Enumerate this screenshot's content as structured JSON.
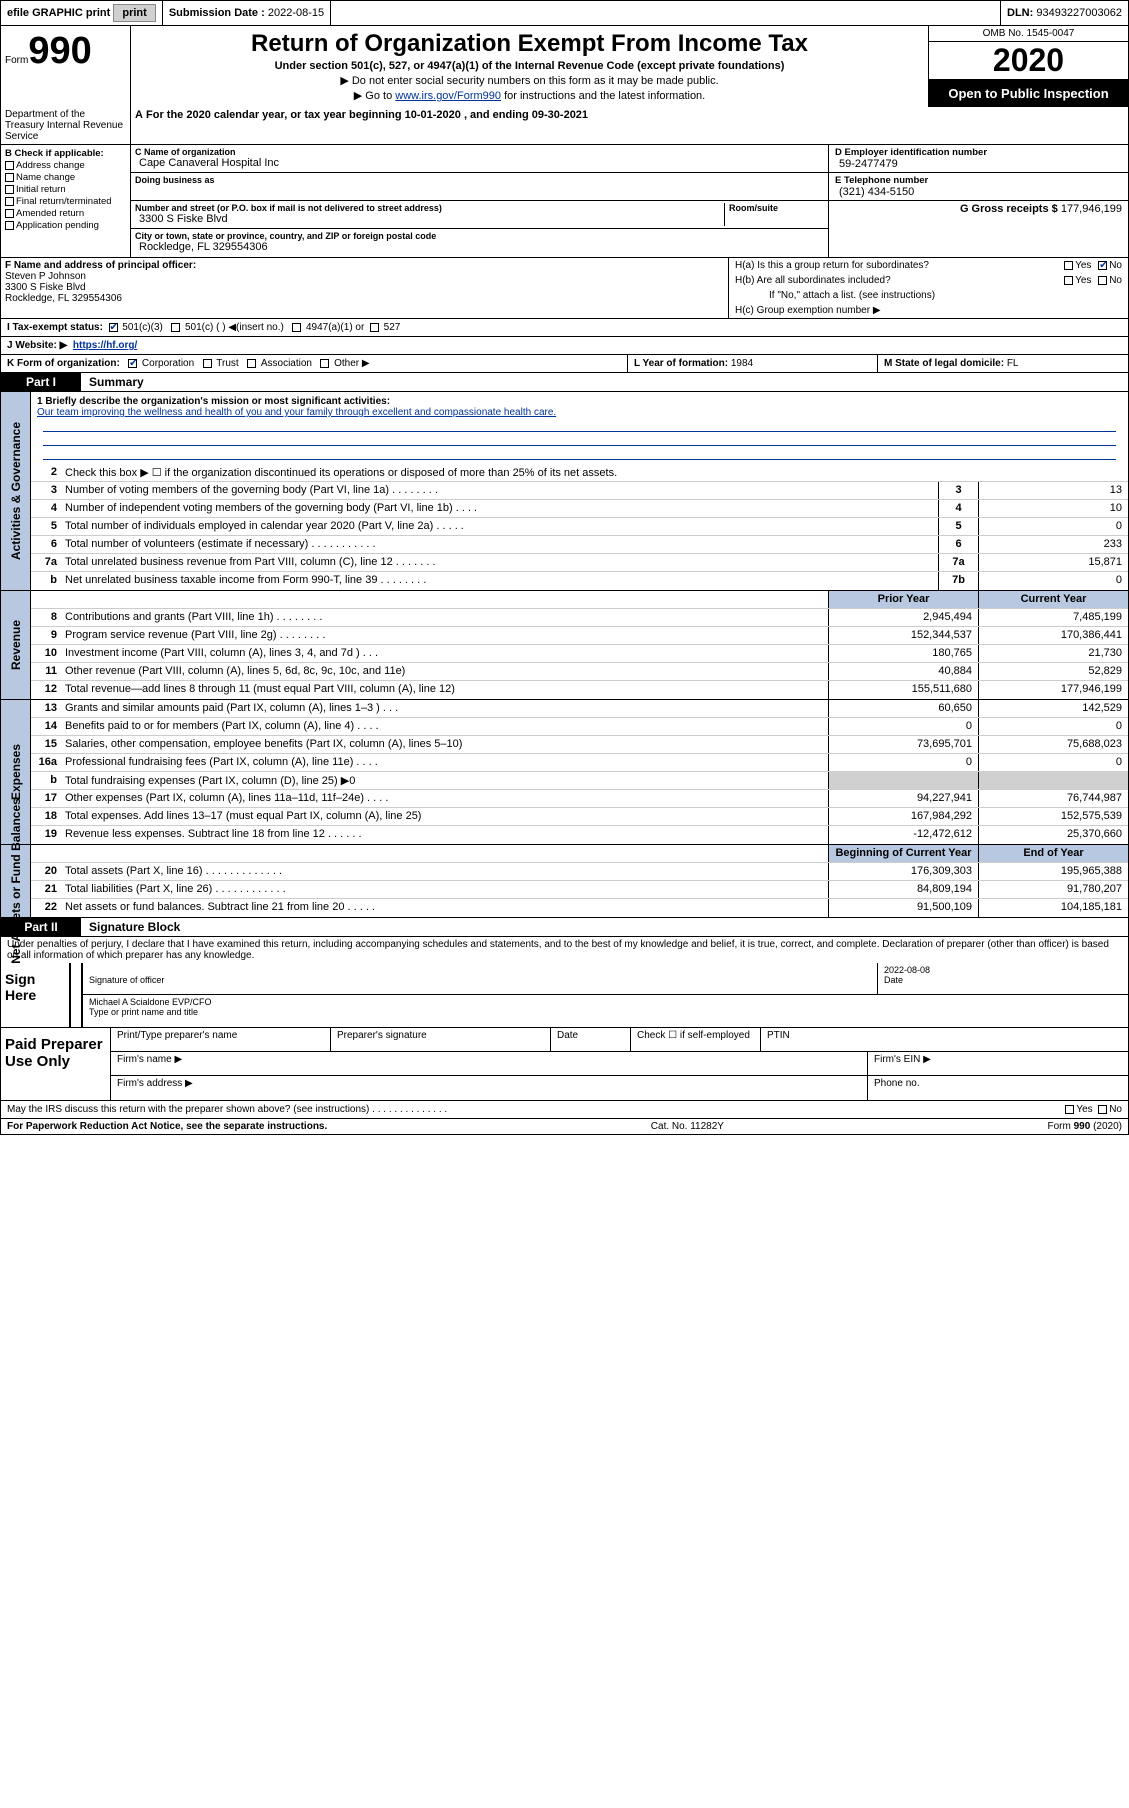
{
  "topbar": {
    "efile": "efile GRAPHIC print",
    "submission_label": "Submission Date :",
    "submission_date": "2022-08-15",
    "dln_label": "DLN:",
    "dln": "93493227003062"
  },
  "header": {
    "form_small": "Form",
    "form_big": "990",
    "title": "Return of Organization Exempt From Income Tax",
    "subtitle": "Under section 501(c), 527, or 4947(a)(1) of the Internal Revenue Code (except private foundations)",
    "note1": "▶ Do not enter social security numbers on this form as it may be made public.",
    "note2_pre": "▶ Go to ",
    "note2_link": "www.irs.gov/Form990",
    "note2_post": " for instructions and the latest information.",
    "omb": "OMB No. 1545-0047",
    "year": "2020",
    "open": "Open to Public Inspection",
    "dept": "Department of the Treasury Internal Revenue Service"
  },
  "lineA": "For the 2020 calendar year, or tax year beginning 10-01-2020    , and ending 09-30-2021",
  "boxB": {
    "label": "B Check if applicable:",
    "items": [
      "Address change",
      "Name change",
      "Initial return",
      "Final return/terminated",
      "Amended return",
      "Application pending"
    ]
  },
  "boxC": {
    "name_lbl": "C Name of organization",
    "name": "Cape Canaveral Hospital Inc",
    "dba_lbl": "Doing business as",
    "dba": "",
    "street_lbl": "Number and street (or P.O. box if mail is not delivered to street address)",
    "room_lbl": "Room/suite",
    "street": "3300 S Fiske Blvd",
    "city_lbl": "City or town, state or province, country, and ZIP or foreign postal code",
    "city": "Rockledge, FL  329554306"
  },
  "boxD": {
    "lbl": "D Employer identification number",
    "val": "59-2477479"
  },
  "boxE": {
    "lbl": "E Telephone number",
    "val": "(321) 434-5150"
  },
  "boxG": {
    "lbl": "G Gross receipts $",
    "val": "177,946,199"
  },
  "boxF": {
    "lbl": "F  Name and address of principal officer:",
    "name": "Steven P Johnson",
    "addr1": "3300 S Fiske Blvd",
    "addr2": "Rockledge, FL  329554306"
  },
  "boxH": {
    "a": "H(a)  Is this a group return for subordinates?",
    "b": "H(b)  Are all subordinates included?",
    "b_note": "If \"No,\" attach a list. (see instructions)",
    "c": "H(c)  Group exemption number ▶"
  },
  "boxI": {
    "lbl": "I  Tax-exempt status:",
    "opts": [
      "501(c)(3)",
      "501(c) (  )  ◀(insert no.)",
      "4947(a)(1) or",
      "527"
    ]
  },
  "boxJ": {
    "lbl": "J  Website: ▶",
    "val": "https://hf.org/"
  },
  "boxK": {
    "lbl": "K Form of organization:",
    "opts": [
      "Corporation",
      "Trust",
      "Association",
      "Other ▶"
    ]
  },
  "boxL": {
    "lbl": "L Year of formation:",
    "val": "1984"
  },
  "boxM": {
    "lbl": "M State of legal domicile:",
    "val": "FL"
  },
  "part1": {
    "hdr": "Part I",
    "title": "Summary",
    "mission_lbl": "1  Briefly describe the organization's mission or most significant activities:",
    "mission": "Our team improving the wellness and health of you and your family through excellent and compassionate health care.",
    "line2": "Check this box ▶ ☐  if the organization discontinued its operations or disposed of more than 25% of its net assets."
  },
  "governance_label": "Activities & Governance",
  "gov_lines": [
    {
      "n": "3",
      "t": "Number of voting members of the governing body (Part VI, line 1a)   .    .    .    .    .    .    .    .",
      "box": "3",
      "v": "13"
    },
    {
      "n": "4",
      "t": "Number of independent voting members of the governing body (Part VI, line 1b)   .    .    .    .",
      "box": "4",
      "v": "10"
    },
    {
      "n": "5",
      "t": "Total number of individuals employed in calendar year 2020 (Part V, line 2a)   .    .    .    .    .",
      "box": "5",
      "v": "0"
    },
    {
      "n": "6",
      "t": "Total number of volunteers (estimate if necessary)   .    .    .    .    .    .    .    .    .    .    .",
      "box": "6",
      "v": "233"
    },
    {
      "n": "7a",
      "t": "Total unrelated business revenue from Part VIII, column (C), line 12   .    .    .    .    .    .    .",
      "box": "7a",
      "v": "15,871"
    },
    {
      "n": "b",
      "t": "Net unrelated business taxable income from Form 990-T, line 39   .    .    .    .    .    .    .    .",
      "box": "7b",
      "v": "0"
    }
  ],
  "revenue_label": "Revenue",
  "rev_hdr": {
    "prior": "Prior Year",
    "current": "Current Year"
  },
  "rev_lines": [
    {
      "n": "8",
      "t": "Contributions and grants (Part VIII, line 1h)   .    .    .    .    .    .    .    .",
      "p": "2,945,494",
      "c": "7,485,199"
    },
    {
      "n": "9",
      "t": "Program service revenue (Part VIII, line 2g)   .    .    .    .    .    .    .    .",
      "p": "152,344,537",
      "c": "170,386,441"
    },
    {
      "n": "10",
      "t": "Investment income (Part VIII, column (A), lines 3, 4, and 7d )   .    .    .",
      "p": "180,765",
      "c": "21,730"
    },
    {
      "n": "11",
      "t": "Other revenue (Part VIII, column (A), lines 5, 6d, 8c, 9c, 10c, and 11e)",
      "p": "40,884",
      "c": "52,829"
    },
    {
      "n": "12",
      "t": "Total revenue—add lines 8 through 11 (must equal Part VIII, column (A), line 12)",
      "p": "155,511,680",
      "c": "177,946,199"
    }
  ],
  "expenses_label": "Expenses",
  "exp_lines": [
    {
      "n": "13",
      "t": "Grants and similar amounts paid (Part IX, column (A), lines 1–3 )   .    .    .",
      "p": "60,650",
      "c": "142,529"
    },
    {
      "n": "14",
      "t": "Benefits paid to or for members (Part IX, column (A), line 4)   .    .    .    .",
      "p": "0",
      "c": "0"
    },
    {
      "n": "15",
      "t": "Salaries, other compensation, employee benefits (Part IX, column (A), lines 5–10)",
      "p": "73,695,701",
      "c": "75,688,023"
    },
    {
      "n": "16a",
      "t": "Professional fundraising fees (Part IX, column (A), line 11e)   .    .    .    .",
      "p": "0",
      "c": "0"
    },
    {
      "n": "b",
      "t": "Total fundraising expenses (Part IX, column (D), line 25) ▶0",
      "p": "",
      "c": "",
      "shade": true
    },
    {
      "n": "17",
      "t": "Other expenses (Part IX, column (A), lines 11a–11d, 11f–24e)   .    .    .    .",
      "p": "94,227,941",
      "c": "76,744,987"
    },
    {
      "n": "18",
      "t": "Total expenses. Add lines 13–17 (must equal Part IX, column (A), line 25)",
      "p": "167,984,292",
      "c": "152,575,539"
    },
    {
      "n": "19",
      "t": "Revenue less expenses. Subtract line 18 from line 12   .    .    .    .    .    .",
      "p": "-12,472,612",
      "c": "25,370,660"
    }
  ],
  "netassets_label": "Net Assets or Fund Balances",
  "na_hdr": {
    "begin": "Beginning of Current Year",
    "end": "End of Year"
  },
  "na_lines": [
    {
      "n": "20",
      "t": "Total assets (Part X, line 16)   .    .    .    .    .    .    .    .    .    .    .    .    .",
      "p": "176,309,303",
      "c": "195,965,388"
    },
    {
      "n": "21",
      "t": "Total liabilities (Part X, line 26)   .    .    .    .    .    .    .    .    .    .    .    .",
      "p": "84,809,194",
      "c": "91,780,207"
    },
    {
      "n": "22",
      "t": "Net assets or fund balances. Subtract line 21 from line 20   .    .    .    .    .",
      "p": "91,500,109",
      "c": "104,185,181"
    }
  ],
  "part2": {
    "hdr": "Part II",
    "title": "Signature Block",
    "penalty": "Under penalties of perjury, I declare that I have examined this return, including accompanying schedules and statements, and to the best of my knowledge and belief, it is true, correct, and complete. Declaration of preparer (other than officer) is based on all information of which preparer has any knowledge."
  },
  "sign": {
    "left": "Sign Here",
    "sig_lbl": "Signature of officer",
    "date_lbl": "Date",
    "date": "2022-08-08",
    "name": "Michael A Scialdone  EVP/CFO",
    "name_lbl": "Type or print name and title"
  },
  "paid": {
    "left": "Paid Preparer Use Only",
    "h1": "Print/Type preparer's name",
    "h2": "Preparer's signature",
    "h3": "Date",
    "h4_pre": "Check ☐ if self-employed",
    "h5": "PTIN",
    "firm_name": "Firm's name    ▶",
    "firm_ein": "Firm's EIN ▶",
    "firm_addr": "Firm's address ▶",
    "phone": "Phone no."
  },
  "discuss": "May the IRS discuss this return with the preparer shown above? (see instructions)   .    .    .    .    .    .    .    .    .    .    .    .    .    .",
  "footer": {
    "left": "For Paperwork Reduction Act Notice, see the separate instructions.",
    "mid": "Cat. No. 11282Y",
    "right": "Form 990 (2020)"
  }
}
